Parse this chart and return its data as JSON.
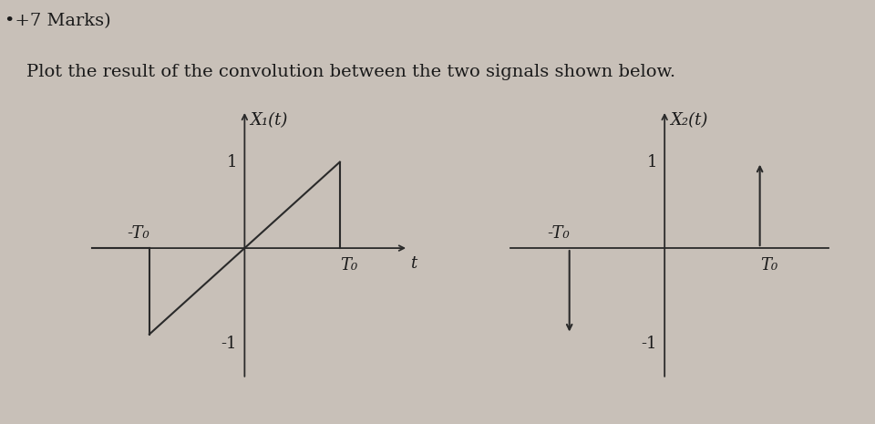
{
  "bg_color": "#c8c0b8",
  "line_color": "#2a2a2a",
  "text_color": "#1a1a1a",
  "signal1_label": "X₁(t)",
  "signal2_label": "X₂(t)",
  "axis_t_label": "t",
  "T0_label": "T₀",
  "negT0_label": "-T₀",
  "one_label": "1",
  "neg_one_label": "-1",
  "header_line1": "•+7 Marks)",
  "header_line2": "Plot the result of the convolution between the two signals shown below.",
  "font_size_header": 14,
  "font_size_label": 13,
  "font_size_tick": 13
}
